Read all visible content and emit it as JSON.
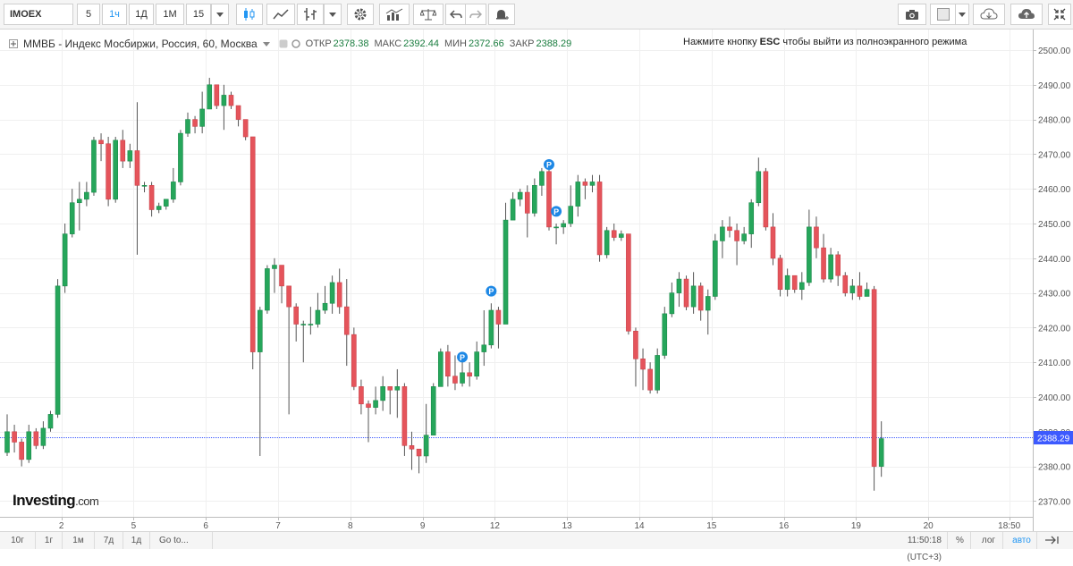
{
  "toolbar": {
    "symbol": "IMOEX",
    "intervals": [
      "5",
      "1ч",
      "1Д",
      "1М",
      "15"
    ],
    "active_interval": "1ч"
  },
  "header": {
    "title": "ММВБ - Индекс Мосбиржи, Россия, 60, Москва",
    "open_label": "ОТКР",
    "open": "2378.38",
    "high_label": "МАКС",
    "high": "2392.44",
    "low_label": "МИН",
    "low": "2372.66",
    "close_label": "ЗАКР",
    "close": "2388.29",
    "esc_prefix": "Нажмите кнопку ",
    "esc_key": "ESC",
    "esc_suffix": " чтобы выйти из полноэкранного режима"
  },
  "logo": {
    "brand": "Investing",
    "suffix": ".com"
  },
  "bottom_bar": {
    "ranges": [
      "10г",
      "1г",
      "1м",
      "7д",
      "1д",
      "Go to..."
    ],
    "time": "11:50:18 (UTC+3)",
    "percent": "%",
    "log": "лог",
    "auto": "авто"
  },
  "colors": {
    "up": "#26a65b",
    "down": "#e5545b",
    "wick": "#555555",
    "price_line": "#3d5afe",
    "marker": "#1e88e5"
  },
  "chart_data": {
    "type": "candlestick",
    "yaxis_side": "right",
    "ylim": [
      2365,
      2503
    ],
    "y_ticks": [
      "2500.00",
      "2490.00",
      "2480.00",
      "2470.00",
      "2460.00",
      "2450.00",
      "2440.00",
      "2430.00",
      "2420.00",
      "2410.00",
      "2400.00",
      "2390.00",
      "2380.00",
      "2370.00"
    ],
    "x_labels": [
      {
        "label": "2",
        "i": 7.5
      },
      {
        "label": "5",
        "i": 17.5
      },
      {
        "label": "6",
        "i": 27.5
      },
      {
        "label": "7",
        "i": 37.5
      },
      {
        "label": "8",
        "i": 47.5
      },
      {
        "label": "9",
        "i": 57.5
      },
      {
        "label": "12",
        "i": 67.5
      },
      {
        "label": "13",
        "i": 77.5
      },
      {
        "label": "14",
        "i": 87.5
      },
      {
        "label": "15",
        "i": 97.5
      },
      {
        "label": "16",
        "i": 107.5
      },
      {
        "label": "19",
        "i": 117.5
      },
      {
        "label": "20",
        "i": 127.5
      },
      {
        "label": "18:50",
        "i": 138.7
      }
    ],
    "last_price": "2388.29",
    "current_value": 2388.29,
    "markers": [
      {
        "i": 63,
        "y": 2411.5,
        "label": "P"
      },
      {
        "i": 67,
        "y": 2430.5,
        "label": "P"
      },
      {
        "i": 75,
        "y": 2467,
        "label": "P"
      },
      {
        "i": 76,
        "y": 2453.5,
        "label": "P"
      }
    ],
    "candles": [
      [
        2384,
        2390,
        2395,
        2383
      ],
      [
        2390,
        2387,
        2392,
        2384
      ],
      [
        2387,
        2382,
        2388,
        2380
      ],
      [
        2382,
        2390,
        2392,
        2381
      ],
      [
        2390,
        2386,
        2391,
        2385
      ],
      [
        2386,
        2391,
        2393,
        2385
      ],
      [
        2391,
        2395,
        2396,
        2390
      ],
      [
        2395,
        2432,
        2434,
        2394
      ],
      [
        2432,
        2447,
        2450,
        2430
      ],
      [
        2447,
        2456,
        2460,
        2446
      ],
      [
        2456,
        2457,
        2462,
        2448
      ],
      [
        2457,
        2459,
        2462,
        2455
      ],
      [
        2459,
        2474,
        2475,
        2458
      ],
      [
        2474,
        2473,
        2476,
        2468
      ],
      [
        2473,
        2457,
        2475,
        2455
      ],
      [
        2457,
        2474,
        2475,
        2456
      ],
      [
        2474,
        2468,
        2477,
        2466
      ],
      [
        2468,
        2471,
        2473,
        2466
      ],
      [
        2471,
        2461,
        2485,
        2441
      ],
      [
        2461,
        2461,
        2462,
        2459
      ],
      [
        2461,
        2454,
        2462,
        2452
      ],
      [
        2454,
        2455,
        2456,
        2453
      ],
      [
        2455,
        2457,
        2457,
        2454
      ],
      [
        2457,
        2462,
        2466,
        2456
      ],
      [
        2462,
        2476,
        2477,
        2461
      ],
      [
        2476,
        2480,
        2482,
        2475
      ],
      [
        2480,
        2478,
        2481,
        2476
      ],
      [
        2478,
        2483,
        2488,
        2476
      ],
      [
        2483,
        2490,
        2492,
        2484
      ],
      [
        2490,
        2484,
        2489,
        2483
      ],
      [
        2484,
        2487,
        2490,
        2477
      ],
      [
        2487,
        2484,
        2488,
        2483
      ],
      [
        2484,
        2480,
        2482,
        2478
      ],
      [
        2480,
        2475,
        2477,
        2474
      ],
      [
        2475,
        2413,
        2474,
        2408
      ],
      [
        2413,
        2425,
        2426,
        2383
      ],
      [
        2425,
        2437,
        2438,
        2424
      ],
      [
        2437,
        2438,
        2440,
        2430
      ],
      [
        2438,
        2432,
        2433,
        2427
      ],
      [
        2432,
        2426,
        2428,
        2395
      ],
      [
        2426,
        2421,
        2427,
        2416
      ],
      [
        2421,
        2421,
        2422,
        2410
      ],
      [
        2421,
        2421,
        2426,
        2418
      ],
      [
        2421,
        2425,
        2430,
        2420
      ],
      [
        2425,
        2427,
        2432,
        2424
      ],
      [
        2427,
        2433,
        2435,
        2424
      ],
      [
        2433,
        2426,
        2437,
        2424
      ],
      [
        2426,
        2418,
        2434,
        2409
      ],
      [
        2418,
        2403,
        2420,
        2402
      ],
      [
        2403,
        2398,
        2405,
        2395
      ],
      [
        2398,
        2397,
        2399,
        2387
      ],
      [
        2397,
        2399,
        2403,
        2395
      ],
      [
        2399,
        2403,
        2406,
        2396
      ],
      [
        2403,
        2402,
        2403,
        2395
      ],
      [
        2402,
        2403,
        2408,
        2394
      ],
      [
        2403,
        2386,
        2404,
        2383
      ],
      [
        2386,
        2385,
        2390,
        2379
      ],
      [
        2385,
        2383,
        2385,
        2378
      ],
      [
        2383,
        2389,
        2398,
        2381
      ],
      [
        2389,
        2403,
        2404,
        2397
      ],
      [
        2403,
        2413,
        2414,
        2404
      ],
      [
        2413,
        2406,
        2415,
        2403
      ],
      [
        2406,
        2404,
        2412,
        2402
      ],
      [
        2404,
        2407,
        2413,
        2403
      ],
      [
        2407,
        2406,
        2410,
        2403
      ],
      [
        2406,
        2413,
        2416,
        2405
      ],
      [
        2413,
        2415,
        2425,
        2409
      ],
      [
        2415,
        2425,
        2427,
        2414
      ],
      [
        2425,
        2421,
        2426,
        2414
      ],
      [
        2421,
        2451,
        2456,
        2422
      ],
      [
        2451,
        2457,
        2459,
        2451
      ],
      [
        2457,
        2459,
        2460,
        2455
      ],
      [
        2459,
        2453,
        2461,
        2446
      ],
      [
        2453,
        2461,
        2463,
        2452
      ],
      [
        2461,
        2465,
        2466,
        2458
      ],
      [
        2465,
        2449,
        2466,
        2448
      ],
      [
        2449,
        2449,
        2450,
        2444
      ],
      [
        2449,
        2450,
        2451,
        2447
      ],
      [
        2450,
        2455,
        2461,
        2449
      ],
      [
        2455,
        2462,
        2464,
        2452
      ],
      [
        2462,
        2461,
        2463,
        2457
      ],
      [
        2461,
        2462,
        2464,
        2459
      ],
      [
        2462,
        2441,
        2464,
        2439
      ],
      [
        2441,
        2448,
        2449,
        2440
      ],
      [
        2448,
        2446,
        2450,
        2445
      ],
      [
        2446,
        2447,
        2448,
        2445
      ],
      [
        2447,
        2419,
        2447,
        2418
      ],
      [
        2419,
        2411,
        2420,
        2403
      ],
      [
        2411,
        2408,
        2414,
        2402
      ],
      [
        2408,
        2402,
        2410,
        2401
      ],
      [
        2402,
        2412,
        2414,
        2401
      ],
      [
        2412,
        2424,
        2426,
        2411
      ],
      [
        2424,
        2430,
        2433,
        2423
      ],
      [
        2430,
        2434,
        2436,
        2426
      ],
      [
        2434,
        2426,
        2435,
        2425
      ],
      [
        2426,
        2432,
        2436,
        2424
      ],
      [
        2432,
        2425,
        2433,
        2422
      ],
      [
        2425,
        2429,
        2431,
        2418
      ],
      [
        2429,
        2445,
        2447,
        2428
      ],
      [
        2445,
        2449,
        2451,
        2440
      ],
      [
        2449,
        2448,
        2452,
        2446
      ],
      [
        2448,
        2445,
        2450,
        2438
      ],
      [
        2445,
        2447,
        2449,
        2444
      ],
      [
        2447,
        2456,
        2457,
        2443
      ],
      [
        2456,
        2465,
        2469,
        2455
      ],
      [
        2465,
        2449,
        2466,
        2448
      ],
      [
        2449,
        2440,
        2453,
        2438
      ],
      [
        2440,
        2431,
        2441,
        2429
      ],
      [
        2431,
        2435,
        2437,
        2429
      ],
      [
        2435,
        2431,
        2435,
        2430
      ],
      [
        2431,
        2433,
        2436,
        2428
      ],
      [
        2433,
        2449,
        2454,
        2432
      ],
      [
        2449,
        2443,
        2452,
        2440
      ],
      [
        2443,
        2434,
        2447,
        2433
      ],
      [
        2434,
        2441,
        2443,
        2433
      ],
      [
        2441,
        2435,
        2442,
        2432
      ],
      [
        2435,
        2430,
        2436,
        2429
      ],
      [
        2430,
        2432,
        2434,
        2428
      ],
      [
        2432,
        2429,
        2436,
        2428
      ],
      [
        2429,
        2431,
        2433,
        2429
      ],
      [
        2431,
        2380,
        2432,
        2373
      ],
      [
        2380,
        2388,
        2393,
        2377
      ]
    ]
  }
}
